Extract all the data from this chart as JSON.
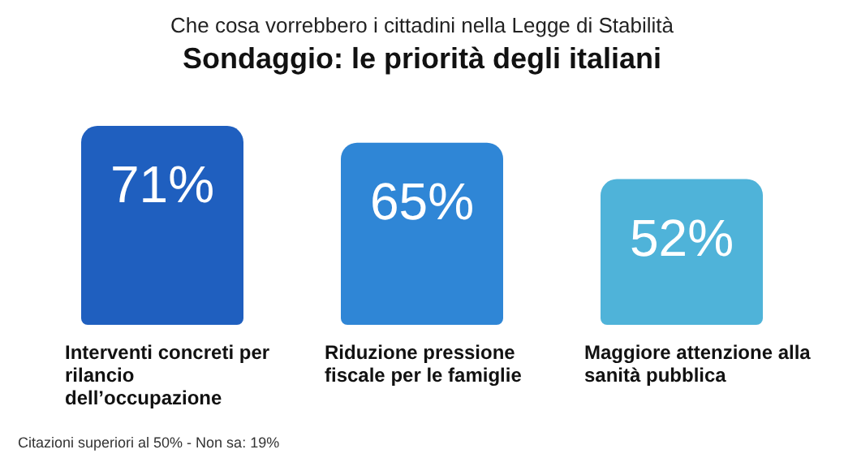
{
  "chart_data": {
    "type": "bar",
    "subtitle": "Che cosa vorrebbero i cittadini nella Legge di Stabilità",
    "title": "Sondaggio: le priorità degli italiani",
    "categories": [
      "Interventi concreti per rilancio dell’occupazione",
      "Riduzione pressione fiscale per le famiglie",
      "Maggiore attenzione alla sanità pubblica"
    ],
    "values": [
      71,
      65,
      52
    ],
    "colors": [
      "#1f5fbf",
      "#2f86d6",
      "#4fb3d9"
    ],
    "value_labels": [
      "71%",
      "65%",
      "52%"
    ],
    "annotations": [
      "Citazioni superiori al 50% - Non sa: 19%"
    ]
  }
}
